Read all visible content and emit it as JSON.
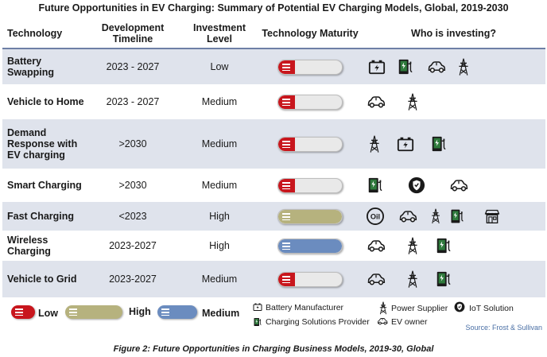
{
  "title": "Future Opportunities in EV Charging: Summary of Potential EV Charging Models, Global, 2019-2030",
  "headers": {
    "technology": "Technology",
    "timeline": "Development Timeline",
    "investment": "Investment Level",
    "maturity": "Technology Maturity",
    "who": "Who is investing?"
  },
  "rows": [
    {
      "technology": "Battery Swapping",
      "timeline": "2023 - 2027",
      "investment": "Low",
      "maturity": "low",
      "investors": [
        "battery-manufacturer",
        "charging-solutions-provider",
        "ev-owner",
        "power-supplier"
      ]
    },
    {
      "technology": "Vehicle to Home",
      "timeline": "2023 - 2027",
      "investment": "Medium",
      "maturity": "low",
      "investors": [
        "ev-owner",
        "power-supplier"
      ]
    },
    {
      "technology": "Demand Response with EV charging",
      "timeline": ">2030",
      "investment": "Medium",
      "maturity": "low",
      "investors": [
        "power-supplier",
        "battery-manufacturer",
        "charging-solutions-provider"
      ]
    },
    {
      "technology": "Smart Charging",
      "timeline": ">2030",
      "investment": "Medium",
      "maturity": "low",
      "investors": [
        "charging-solutions-provider",
        "iot-solution",
        "ev-owner"
      ]
    },
    {
      "technology": "Fast Charging",
      "timeline": "<2023",
      "investment": "High",
      "maturity": "high",
      "investors": [
        "oil-company",
        "ev-owner",
        "power-supplier",
        "charging-solutions-provider",
        "retail-store"
      ]
    },
    {
      "technology": "Wireless Charging",
      "timeline": "2023-2027",
      "investment": "High",
      "maturity": "medium",
      "investors": [
        "ev-owner",
        "power-supplier",
        "charging-solutions-provider"
      ]
    },
    {
      "technology": "Vehicle to Grid",
      "timeline": "2023-2027",
      "investment": "Medium",
      "maturity": "low",
      "investors": [
        "ev-owner",
        "power-supplier",
        "charging-solutions-provider"
      ]
    }
  ],
  "legend": {
    "low": "Low",
    "high": "High",
    "medium": "Medium",
    "battery_manufacturer": "Battery Manufacturer",
    "charging_solutions_provider": "Charging Solutions Provider",
    "power_supplier": "Power Supplier",
    "ev_owner": "EV owner",
    "iot_solution": "IoT Solution"
  },
  "colors": {
    "low": "#c8161d",
    "high": "#b6b27e",
    "medium": "#6b8cbf",
    "header_rule": "#6e7fa6",
    "row_band": "#dfe3ec",
    "charger_green": "#2f7a3c"
  },
  "source": "Source: Frost & Sullivan",
  "caption": "Figure 2: Future Opportunities in Charging Business Models, 2019-30, Global"
}
